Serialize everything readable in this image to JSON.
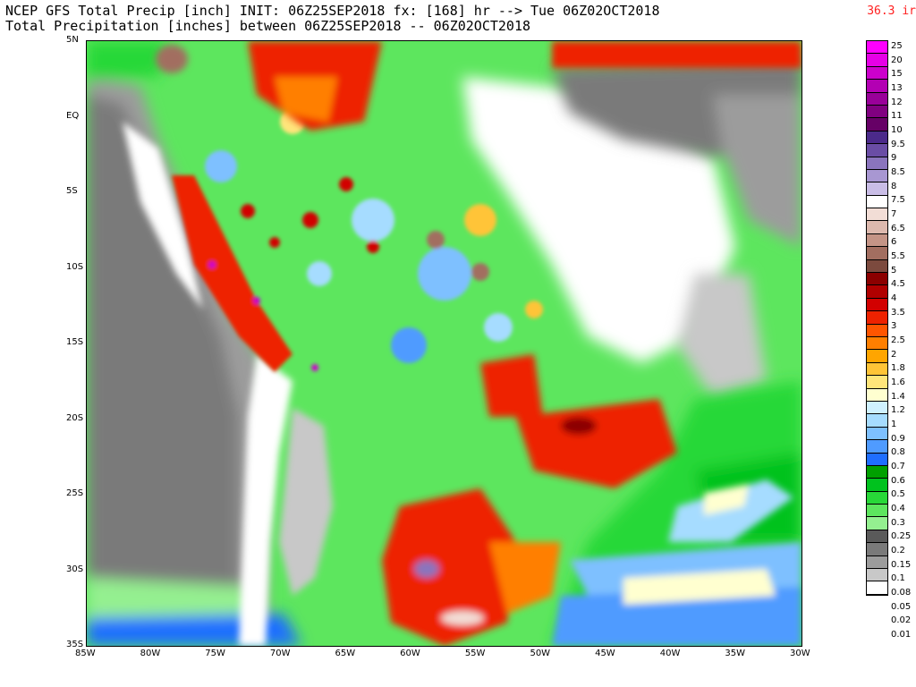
{
  "header": {
    "line1": "NCEP GFS Total Precip [inch] INIT: 06Z25SEP2018 fx: [168] hr --> Tue 06Z02OCT2018",
    "line2": "Total Precipitation [inches] between 06Z25SEP2018 -- 06Z02OCT2018",
    "corner": "36.3 ir"
  },
  "axes": {
    "lat_labels": [
      "5N",
      "EQ",
      "5S",
      "10S",
      "15S",
      "20S",
      "25S",
      "30S",
      "35S"
    ],
    "lon_labels": [
      "85W",
      "80W",
      "75W",
      "70W",
      "65W",
      "60W",
      "55W",
      "50W",
      "45W",
      "40W",
      "35W",
      "30W"
    ]
  },
  "legend": [
    {
      "label": "25",
      "color": "#ff00ff"
    },
    {
      "label": "20",
      "color": "#e600e6"
    },
    {
      "label": "15",
      "color": "#cc00cc"
    },
    {
      "label": "13",
      "color": "#b300b3"
    },
    {
      "label": "12",
      "color": "#990099"
    },
    {
      "label": "11",
      "color": "#800080"
    },
    {
      "label": "10",
      "color": "#660066"
    },
    {
      "label": "9.5",
      "color": "#4b2a8a"
    },
    {
      "label": "9",
      "color": "#6a4da5"
    },
    {
      "label": "8.5",
      "color": "#8a74bd"
    },
    {
      "label": "8",
      "color": "#a897d2"
    },
    {
      "label": "7.5",
      "color": "#c9bde6"
    },
    {
      "label": "7",
      "color": "#ffffff"
    },
    {
      "label": "6.5",
      "color": "#f2ddd6"
    },
    {
      "label": "6",
      "color": "#ddb9ae"
    },
    {
      "label": "5.5",
      "color": "#c49486"
    },
    {
      "label": "5",
      "color": "#a26e60"
    },
    {
      "label": "4.5",
      "color": "#7c4a3e"
    },
    {
      "label": "4",
      "color": "#8b0000"
    },
    {
      "label": "3.5",
      "color": "#b00000"
    },
    {
      "label": "3",
      "color": "#d20000"
    },
    {
      "label": "2.5",
      "color": "#ee2200"
    },
    {
      "label": "2",
      "color": "#ff5500"
    },
    {
      "label": "1.8",
      "color": "#ff7f00"
    },
    {
      "label": "1.6",
      "color": "#ffa500"
    },
    {
      "label": "1.4",
      "color": "#ffc437"
    },
    {
      "label": "1.2",
      "color": "#ffe57a"
    },
    {
      "label": "1",
      "color": "#ffffd0"
    },
    {
      "label": "0.9",
      "color": "#cff1ff"
    },
    {
      "label": "0.8",
      "color": "#a6dcff"
    },
    {
      "label": "0.7",
      "color": "#7ec0ff"
    },
    {
      "label": "0.6",
      "color": "#4f9bff"
    },
    {
      "label": "0.5",
      "color": "#1f6eff"
    },
    {
      "label": "0.4",
      "color": "#00a000"
    },
    {
      "label": "0.3",
      "color": "#00c21e"
    },
    {
      "label": "0.25",
      "color": "#28d838"
    },
    {
      "label": "0.2",
      "color": "#5de65e"
    },
    {
      "label": "0.15",
      "color": "#94f090"
    },
    {
      "label": "0.1",
      "color": "#5a5a5a"
    },
    {
      "label": "0.08",
      "color": "#7a7a7a"
    },
    {
      "label": "0.05",
      "color": "#9c9c9c"
    },
    {
      "label": "0.02",
      "color": "#c8c8c8"
    },
    {
      "label": "0.01",
      "color": "#ffffff"
    }
  ]
}
